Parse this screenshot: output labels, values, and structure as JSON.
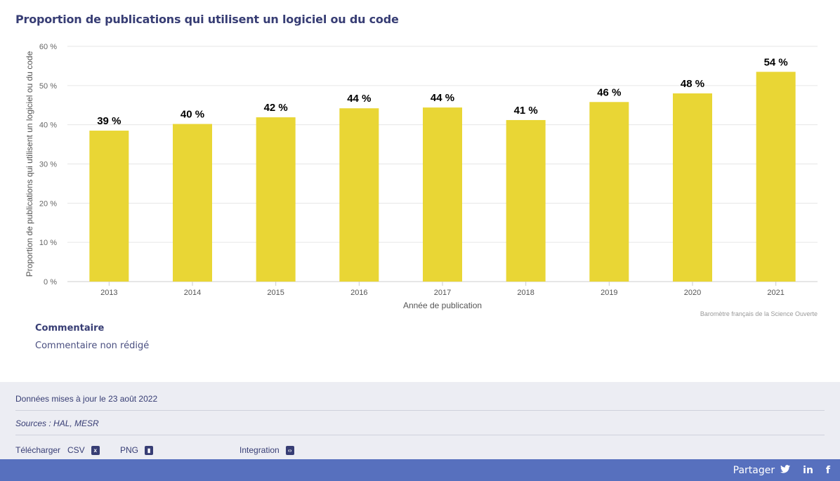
{
  "title": "Proportion de publications qui utilisent un logiciel ou du code",
  "chart_data": {
    "type": "bar",
    "categories": [
      "2013",
      "2014",
      "2015",
      "2016",
      "2017",
      "2018",
      "2019",
      "2020",
      "2021"
    ],
    "values": [
      38.5,
      40.2,
      41.9,
      44.2,
      44.4,
      41.2,
      45.8,
      48.0,
      53.5
    ],
    "data_labels": [
      "39 %",
      "40 %",
      "42 %",
      "44 %",
      "44 %",
      "41 %",
      "46 %",
      "48 %",
      "54 %"
    ],
    "ylabel": "Proportion de publications qui utilisent un logiciel ou du code",
    "xlabel": "Année de publication",
    "ylim": [
      0,
      60
    ],
    "yticks": [
      0,
      10,
      20,
      30,
      40,
      50,
      60
    ],
    "ytick_labels": [
      "0 %",
      "10 %",
      "20 %",
      "30 %",
      "40 %",
      "50 %",
      "60 %"
    ],
    "bar_color": "#e9d635",
    "grid": true
  },
  "credit": "Baromètre français de la Science Ouverte",
  "comment": {
    "heading": "Commentaire",
    "text": "Commentaire non rédigé"
  },
  "info": {
    "updated": "Données mises à jour le 23 août 2022",
    "sources": "Sources : HAL, MESR",
    "download_label": "Télécharger",
    "csv": "CSV",
    "png": "PNG",
    "integration": "Integration"
  },
  "footer": {
    "share": "Partager",
    "icons": [
      "twitter-icon",
      "linkedin-icon",
      "facebook-icon"
    ]
  }
}
